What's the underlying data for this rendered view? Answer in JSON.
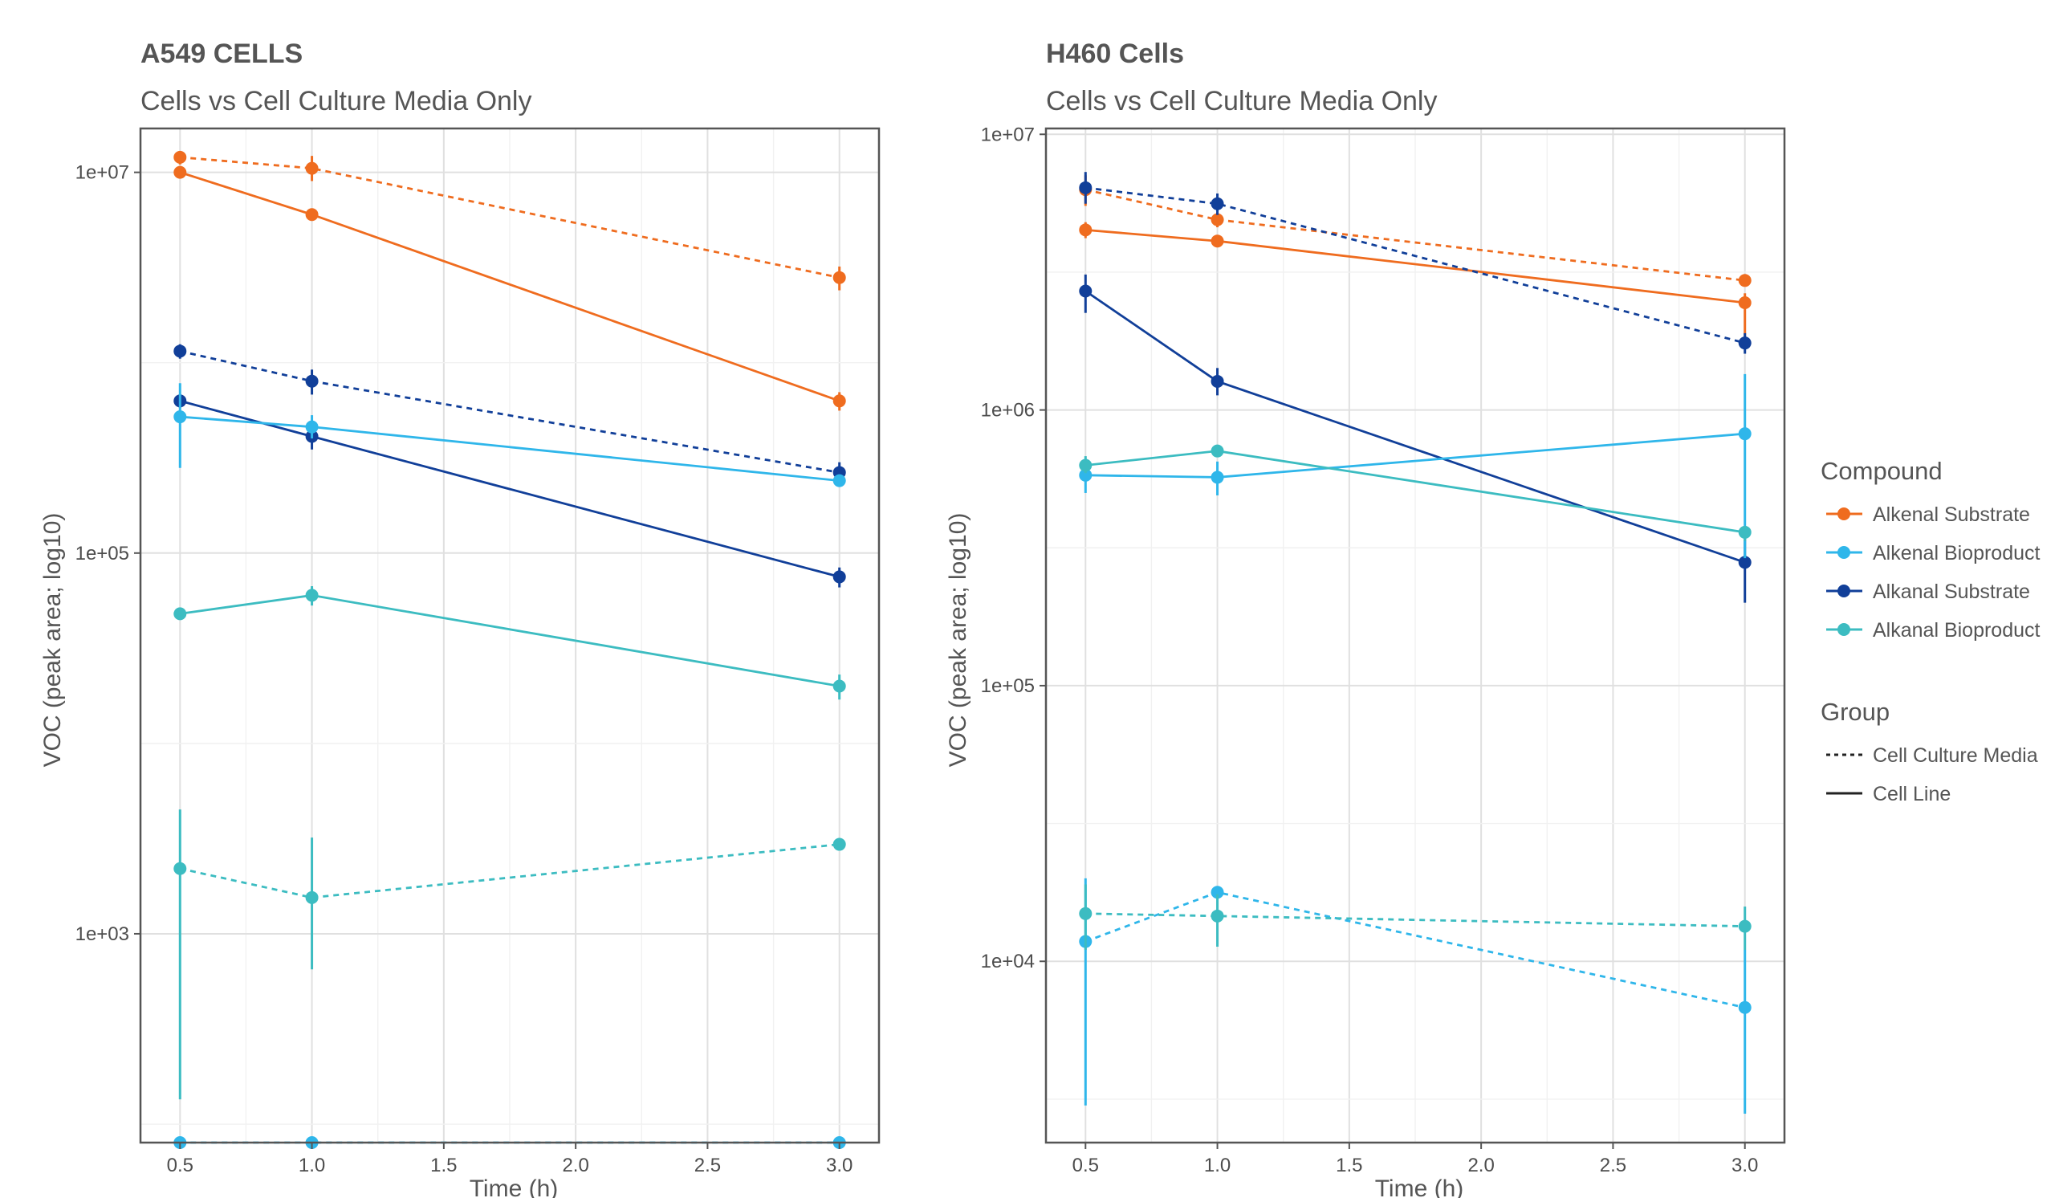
{
  "chart_data": [
    {
      "type": "line",
      "title": "A549 CELLS",
      "subtitle": "Cells vs Cell Culture Media Only",
      "xlabel": "Time (h)",
      "ylabel": "VOC (peak area; log10)",
      "yscale": "log10",
      "xlim": [
        0.35,
        3.15
      ],
      "ylim": [
        80,
        17000000
      ],
      "xticks": [
        "0.5",
        "1.0",
        "1.5",
        "2.0",
        "2.5",
        "3.0"
      ],
      "yticks": [
        "1e+03",
        "1e+05",
        "1e+07"
      ],
      "grid": true,
      "x": [
        0.5,
        1.0,
        3.0
      ],
      "series": [
        {
          "compound": "Alkenal Substrate",
          "group": "Cell Culture Media",
          "y": [
            12000000,
            10500000,
            2800000
          ],
          "err_low": [
            11000000,
            9000000,
            2400000
          ],
          "err_high": [
            12700000,
            12200000,
            3200000
          ]
        },
        {
          "compound": "Alkenal Substrate",
          "group": "Cell Line",
          "y": [
            10000000,
            6000000,
            630000
          ],
          "err_low": [
            9300000,
            5800000,
            560000
          ],
          "err_high": [
            10800000,
            6200000,
            700000
          ]
        },
        {
          "compound": "Alkanal Substrate",
          "group": "Cell Culture Media",
          "y": [
            1150000,
            800000,
            265000
          ],
          "err_low": [
            1050000,
            680000,
            230000
          ],
          "err_high": [
            1250000,
            920000,
            300000
          ]
        },
        {
          "compound": "Alkanal Substrate",
          "group": "Cell Line",
          "y": [
            630000,
            410000,
            75000
          ],
          "err_low": [
            580000,
            350000,
            66000
          ],
          "err_high": [
            680000,
            470000,
            84000
          ]
        },
        {
          "compound": "Alkenal Bioproduct",
          "group": "Cell Line",
          "y": [
            520000,
            460000,
            240000
          ],
          "err_low": [
            280000,
            400000,
            225000
          ],
          "err_high": [
            780000,
            530000,
            255000
          ]
        },
        {
          "compound": "Alkenal Bioproduct",
          "group": "Cell Culture Media",
          "y": [
            80,
            80,
            80
          ],
          "err_low": [
            80,
            80,
            80
          ],
          "err_high": [
            80,
            80,
            80
          ]
        },
        {
          "compound": "Alkanal Bioproduct",
          "group": "Cell Line",
          "y": [
            48000,
            60000,
            20000
          ],
          "err_low": [
            47000,
            53000,
            17000
          ],
          "err_high": [
            49000,
            67000,
            23000
          ]
        },
        {
          "compound": "Alkanal Bioproduct",
          "group": "Cell Culture Media",
          "y": [
            2200,
            1550,
            2950
          ],
          "err_low": [
            135,
            650,
            2900
          ],
          "err_high": [
            4500,
            3200,
            3000
          ]
        }
      ]
    },
    {
      "type": "line",
      "title": "H460 Cells",
      "subtitle": "Cells vs Cell Culture Media Only",
      "xlabel": "Time (h)",
      "ylabel": "VOC (peak area; log10)",
      "yscale": "log10",
      "xlim": [
        0.35,
        3.15
      ],
      "ylim": [
        2200,
        10500000
      ],
      "xticks": [
        "0.5",
        "1.0",
        "1.5",
        "2.0",
        "2.5",
        "3.0"
      ],
      "yticks": [
        "1e+04",
        "1e+05",
        "1e+06",
        "1e+07"
      ],
      "grid": true,
      "x": [
        0.5,
        1.0,
        3.0
      ],
      "series": [
        {
          "compound": "Alkenal Substrate",
          "group": "Cell Culture Media",
          "y": [
            6300000,
            4900000,
            2950000
          ],
          "err_low": [
            5500000,
            4600000,
            2850000
          ],
          "err_high": [
            7100000,
            5200000,
            3050000
          ]
        },
        {
          "compound": "Alkenal Substrate",
          "group": "Cell Line",
          "y": [
            4500000,
            4100000,
            2450000
          ],
          "err_low": [
            4200000,
            3900000,
            1850000
          ],
          "err_high": [
            4800000,
            4300000,
            2650000
          ]
        },
        {
          "compound": "Alkanal Substrate",
          "group": "Cell Culture Media",
          "y": [
            6400000,
            5600000,
            1750000
          ],
          "err_low": [
            5600000,
            5100000,
            1600000
          ],
          "err_high": [
            7300000,
            6100000,
            1900000
          ]
        },
        {
          "compound": "Alkanal Substrate",
          "group": "Cell Line",
          "y": [
            2700000,
            1270000,
            280000
          ],
          "err_low": [
            2250000,
            1130000,
            200000
          ],
          "err_high": [
            3100000,
            1420000,
            340000
          ]
        },
        {
          "compound": "Alkenal Bioproduct",
          "group": "Cell Line",
          "y": [
            580000,
            570000,
            820000
          ],
          "err_low": [
            500000,
            490000,
            290000
          ],
          "err_high": [
            650000,
            650000,
            1350000
          ]
        },
        {
          "compound": "Alkenal Bioproduct",
          "group": "Cell Culture Media",
          "y": [
            11800,
            17800,
            6800
          ],
          "err_low": [
            3000,
            38000,
            2800
          ],
          "err_high": [
            20000,
            38000,
            11000
          ]
        },
        {
          "compound": "Alkanal Bioproduct",
          "group": "Cell Line",
          "y": [
            630000,
            710000,
            360000
          ],
          "err_low": [
            590000,
            690000,
            335000
          ],
          "err_high": [
            680000,
            730000,
            375000
          ]
        },
        {
          "compound": "Alkanal Bioproduct",
          "group": "Cell Culture Media",
          "y": [
            14900,
            14600,
            13400
          ],
          "err_low": [
            11000,
            11300,
            11000
          ],
          "err_high": [
            19000,
            17500,
            15800
          ]
        }
      ]
    }
  ],
  "colors": {
    "Alkenal Substrate": "#ef6c1f",
    "Alkenal Bioproduct": "#2fb6ea",
    "Alkanal Substrate": "#113f99",
    "Alkanal Bioproduct": "#3cbcc1"
  },
  "legend": {
    "compound_title": "Compound",
    "compound_items": [
      "Alkenal Substrate",
      "Alkenal Bioproduct",
      "Alkanal Substrate",
      "Alkanal Bioproduct"
    ],
    "group_title": "Group",
    "group_items": [
      {
        "label": "Cell Culture Media",
        "linetype": "dashed"
      },
      {
        "label": "Cell Line",
        "linetype": "solid"
      }
    ]
  }
}
